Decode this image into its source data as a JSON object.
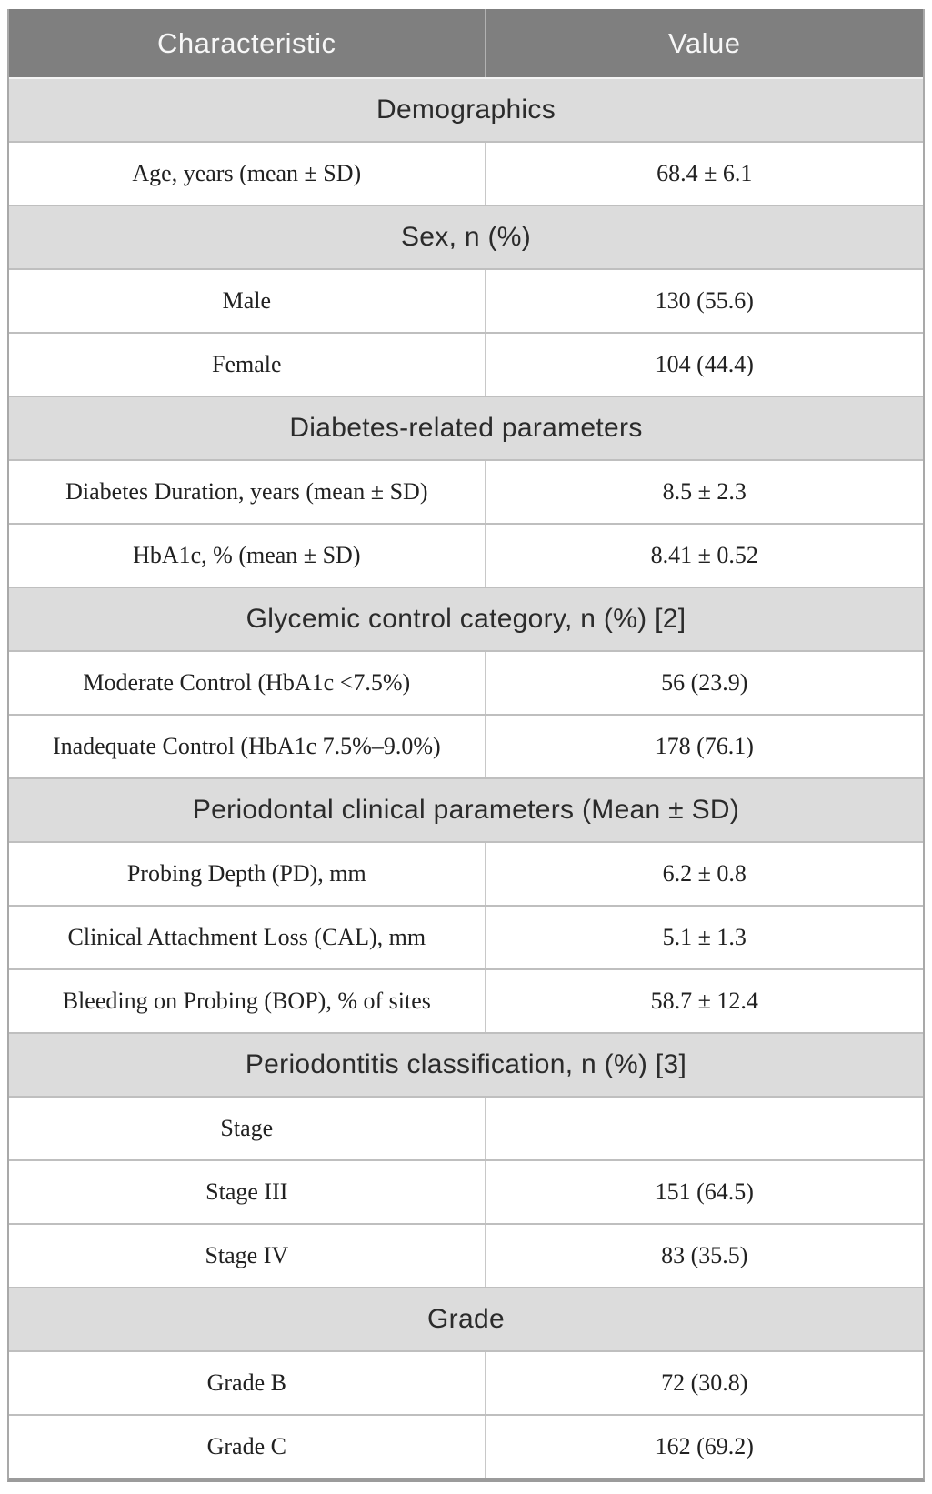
{
  "table": {
    "columns": [
      "Characteristic",
      "Value"
    ],
    "rows": [
      {
        "type": "section",
        "label": "Demographics"
      },
      {
        "type": "data",
        "label": "Age, years (mean ± SD)",
        "value": "68.4 ± 6.1"
      },
      {
        "type": "section",
        "label": "Sex, n (%)"
      },
      {
        "type": "data",
        "label": "Male",
        "value": "130 (55.6)"
      },
      {
        "type": "data",
        "label": "Female",
        "value": "104 (44.4)"
      },
      {
        "type": "section",
        "label": "Diabetes-related parameters"
      },
      {
        "type": "data",
        "label": "Diabetes Duration, years (mean ± SD)",
        "value": "8.5 ± 2.3"
      },
      {
        "type": "data",
        "label": "HbA1c, % (mean ± SD)",
        "value": "8.41 ± 0.52"
      },
      {
        "type": "section",
        "label": "Glycemic control category, n (%) [2]"
      },
      {
        "type": "data",
        "label": "Moderate Control (HbA1c <7.5%)",
        "value": "56 (23.9)"
      },
      {
        "type": "data",
        "label": "Inadequate Control (HbA1c 7.5%–9.0%)",
        "value": "178 (76.1)"
      },
      {
        "type": "section",
        "label": "Periodontal clinical parameters (Mean ± SD)"
      },
      {
        "type": "data",
        "label": "Probing Depth (PD), mm",
        "value": "6.2 ± 0.8"
      },
      {
        "type": "data",
        "label": "Clinical Attachment Loss (CAL), mm",
        "value": "5.1 ± 1.3"
      },
      {
        "type": "data",
        "label": "Bleeding on Probing (BOP), % of sites",
        "value": "58.7 ± 12.4"
      },
      {
        "type": "section",
        "label": "Periodontitis classification, n (%) [3]"
      },
      {
        "type": "data",
        "label": "Stage",
        "value": ""
      },
      {
        "type": "data",
        "label": "Stage III",
        "value": "151 (64.5)"
      },
      {
        "type": "data",
        "label": "Stage IV",
        "value": "83 (35.5)"
      },
      {
        "type": "section",
        "label": "Grade"
      },
      {
        "type": "data",
        "label": "Grade B",
        "value": "72 (30.8)"
      },
      {
        "type": "data",
        "label": "Grade C",
        "value": "162 (69.2)"
      }
    ],
    "colors": {
      "header_bg": "#7f7f7f",
      "header_text": "#f7f7f7",
      "section_bg": "#dcdcdc",
      "section_text": "#2b2b2b",
      "data_text": "#212121",
      "row_border": "#bfbfbf",
      "outer_border": "#9b9b9b"
    }
  }
}
